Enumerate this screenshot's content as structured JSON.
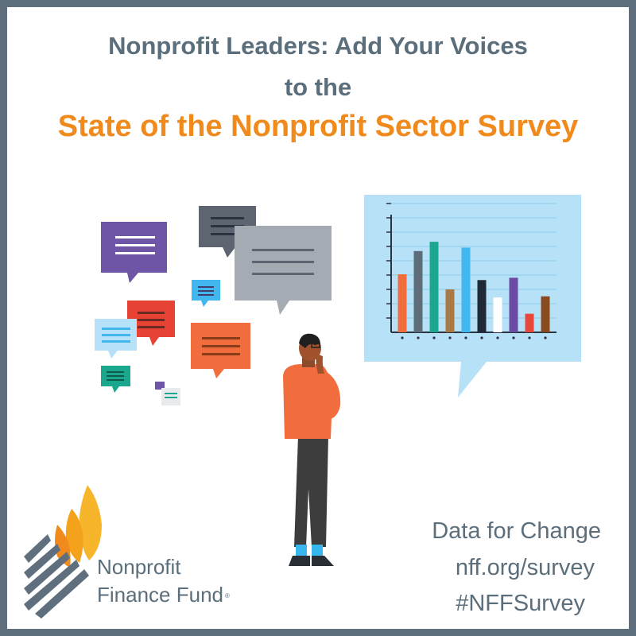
{
  "headline": {
    "line1": "Nonprofit Leaders:  Add Your Voices",
    "line2": "to the",
    "line3": "State of the Nonprofit Sector Survey"
  },
  "footer": {
    "line1": "Data for Change",
    "line2": "nff.org/survey",
    "line3": "#NFFSurvey"
  },
  "logo": {
    "line1": "Nonprofit",
    "line2": "Finance Fund",
    "registered_mark": "®"
  },
  "colors": {
    "headline": "#5b6e7c",
    "accent": "#f08a1c",
    "frame": "#5f6f7d",
    "screen": "#b7e1f7"
  },
  "chart_bars": [
    {
      "color": "#f26d3d",
      "level": 0.5
    },
    {
      "color": "#5d6d7a",
      "level": 0.7
    },
    {
      "color": "#1ba78e",
      "level": 0.78
    },
    {
      "color": "#a97845",
      "level": 0.37
    },
    {
      "color": "#41b8ef",
      "level": 0.73
    },
    {
      "color": "#1f2a36",
      "level": 0.45
    },
    {
      "color": "#ffffff",
      "level": 0.3
    },
    {
      "color": "#6b4ba3",
      "level": 0.47
    },
    {
      "color": "#e8473c",
      "level": 0.16
    },
    {
      "color": "#8a4a1f",
      "level": 0.31
    }
  ]
}
